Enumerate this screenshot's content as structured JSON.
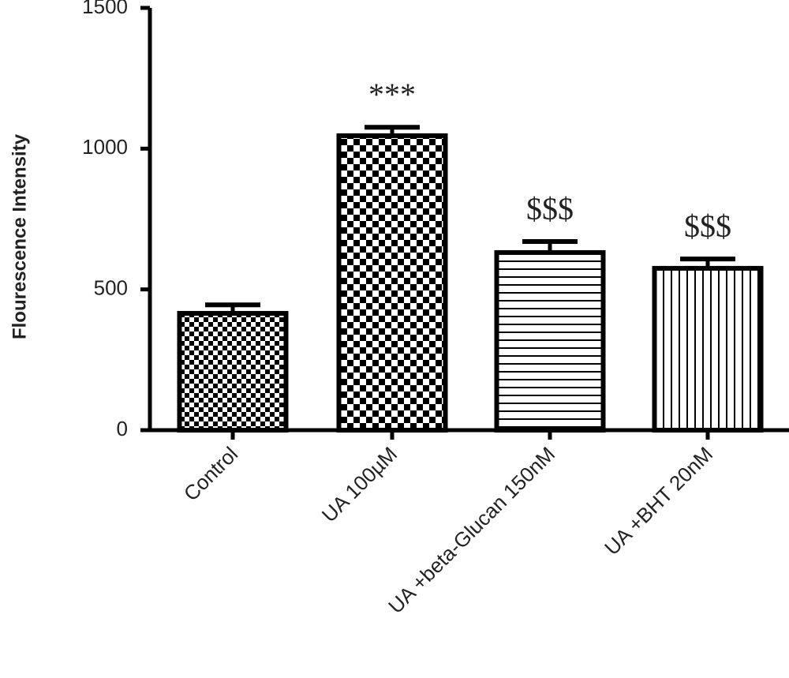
{
  "chart_data": {
    "type": "bar",
    "y_label": "Flourescence Intensity",
    "categories": [
      "Control",
      "UA 100µM",
      "UA +beta-Glucan 150nM",
      "UA +BHT 20nM"
    ],
    "values": [
      415,
      1046,
      631,
      575
    ],
    "errors": [
      30,
      30,
      39,
      33
    ],
    "annotations": [
      null,
      "***",
      "$$$",
      "$$$"
    ],
    "color": "#000000",
    "ylim": [
      0,
      1500
    ],
    "yticks": [
      0,
      500,
      1000,
      1500
    ],
    "grid": false
  }
}
